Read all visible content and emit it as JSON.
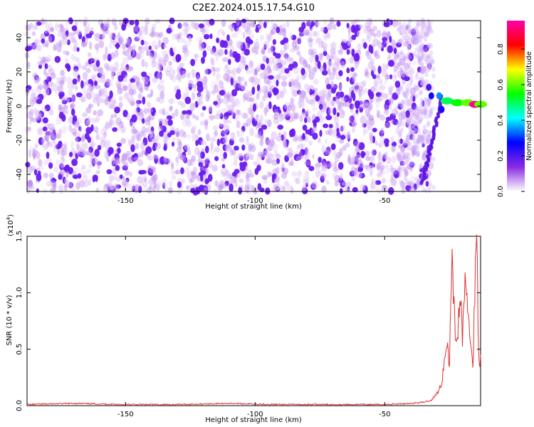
{
  "title": "C2E2.2024.015.17.54.G10",
  "chart_data": [
    {
      "type": "heatmap",
      "xlabel": "Height of straight line (km)",
      "ylabel": "Frequency (Hz)",
      "xlim": [
        -188,
        -13
      ],
      "ylim": [
        -50,
        50
      ],
      "xticks": [
        -150,
        -100,
        -50
      ],
      "yticks": [
        -40,
        -20,
        0,
        20,
        40
      ],
      "background_noise": {
        "x_range": [
          -188,
          -32
        ],
        "y_range": [
          -50,
          50
        ],
        "amplitude_range": [
          0.0,
          0.15
        ]
      },
      "signal": {
        "description_points": [
          {
            "x": -33,
            "y": 11,
            "amplitude": 0.2
          },
          {
            "x": -32,
            "y": 6,
            "amplitude": 0.25
          },
          {
            "x": -29,
            "y": 6,
            "amplitude": 0.35
          },
          {
            "x": -28,
            "y": -2,
            "amplitude": 0.25
          },
          {
            "x": -26,
            "y": 3,
            "amplitude": 0.5
          },
          {
            "x": -22,
            "y": 2,
            "amplitude": 0.55
          },
          {
            "x": -18,
            "y": 2,
            "amplitude": 0.6
          },
          {
            "x": -15,
            "y": 1,
            "amplitude": 0.95
          },
          {
            "x": -13,
            "y": 1,
            "amplitude": 0.6
          }
        ]
      },
      "colorbar": {
        "label": "Normalized spectral amplitude",
        "ticks": [
          0.0,
          0.2,
          0.4,
          0.6,
          0.8
        ],
        "range": [
          0,
          0.96
        ],
        "colors": [
          "#ffffff",
          "#8a2be2",
          "#0000ff",
          "#00ffff",
          "#00ff00",
          "#ffff00",
          "#ff0000",
          "#ff00aa"
        ]
      }
    },
    {
      "type": "line",
      "xlabel": "Height of straight line (km)",
      "ylabel": "SNR (10 * v/v)",
      "y_multiplier_label": "(x10",
      "y_multiplier_exp": "4",
      "y_multiplier_close": ")",
      "xlim": [
        -188,
        -13
      ],
      "ylim": [
        0,
        1.5
      ],
      "xticks": [
        -150,
        -100,
        -50
      ],
      "yticks": [
        0.0,
        0.5,
        1.0,
        1.5
      ],
      "ytick_labels": [
        "0.0",
        "0.5",
        "1.0",
        "1.5"
      ],
      "xtick_labels": [
        "-150",
        "-100",
        "-50"
      ],
      "series": [
        {
          "color": "#e03030",
          "x": [
            -188,
            -170,
            -150,
            -130,
            -110,
            -90,
            -70,
            -50,
            -40,
            -35,
            -32,
            -30,
            -28,
            -26,
            -25,
            -24,
            -23,
            -22,
            -21,
            -20,
            -19,
            -18,
            -17,
            -16,
            -15,
            -14.5,
            -14,
            -13.5,
            -13
          ],
          "y": [
            0.01,
            0.02,
            0.01,
            0.01,
            0.02,
            0.01,
            0.01,
            0.01,
            0.02,
            0.03,
            0.05,
            0.1,
            0.2,
            0.6,
            0.35,
            1.43,
            0.7,
            0.55,
            1.0,
            0.6,
            1.15,
            0.8,
            0.65,
            0.3,
            1.28,
            1.5,
            0.8,
            0.35,
            0.45
          ]
        }
      ]
    }
  ],
  "heatmap_xtick_labels": [
    "-150",
    "-100",
    "-50"
  ],
  "heatmap_ytick_labels": [
    "-40",
    "-20",
    "0",
    "20",
    "40"
  ],
  "colorbar_tick_labels": [
    "0.0",
    "0.2",
    "0.4",
    "0.6",
    "0.8"
  ]
}
